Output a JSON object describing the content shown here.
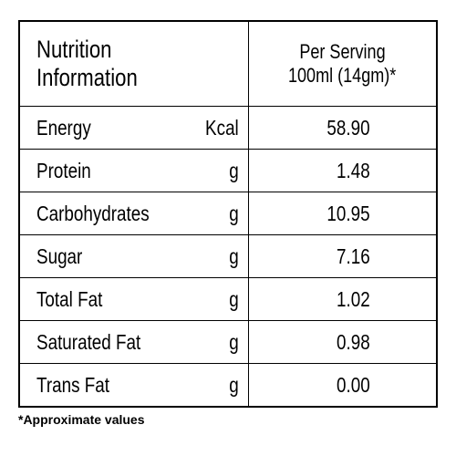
{
  "header": {
    "title": "Nutrition Information",
    "per_serving": "Per Serving",
    "serving_size": "100ml (14gm)*"
  },
  "table": {
    "rows": [
      [
        "Energy",
        "Kcal",
        "58.90"
      ],
      [
        "Protein",
        "g",
        "1.48"
      ],
      [
        "Carbohydrates",
        "g",
        "10.95"
      ],
      [
        "Sugar",
        "g",
        "7.16"
      ],
      [
        "Total Fat",
        "g",
        "1.02"
      ],
      [
        "Saturated Fat",
        "g",
        "0.98"
      ],
      [
        "Trans Fat",
        "g",
        "0.00"
      ]
    ]
  },
  "footnote": "*Approximate values"
}
